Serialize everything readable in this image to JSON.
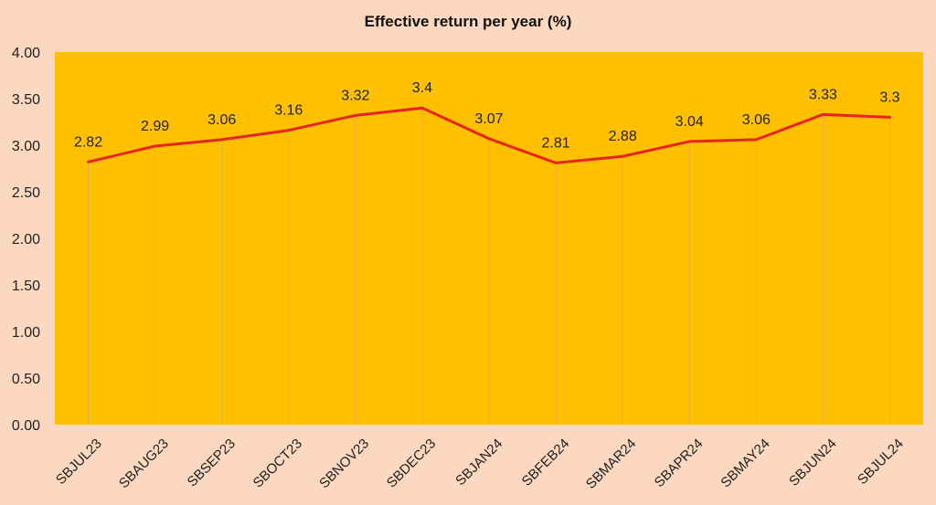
{
  "chart_data": {
    "type": "line",
    "title": "Effective return per year (%)",
    "xlabel": "",
    "ylabel": "",
    "categories": [
      "SBJUL23",
      "SBAUG23",
      "SBSEP23",
      "SBOCT23",
      "SBNOV23",
      "SBDEC23",
      "SBJAN24",
      "SBFEB24",
      "SBMAR24",
      "SBAPR24",
      "SBMAY24",
      "SBJUN24",
      "SBJUL24"
    ],
    "series": [
      {
        "values": [
          2.82,
          2.99,
          3.06,
          3.16,
          3.32,
          3.4,
          3.07,
          2.81,
          2.88,
          3.04,
          3.06,
          3.33,
          3.3
        ]
      }
    ],
    "data_labels": [
      "2.82",
      "2.99",
      "3.06",
      "3.16",
      "3.32",
      "3.4",
      "3.07",
      "2.81",
      "2.88",
      "3.04",
      "3.06",
      "3.33",
      "3.3"
    ],
    "ylim": [
      0,
      4
    ],
    "yticks": [
      "0.00",
      "0.50",
      "1.00",
      "1.50",
      "2.00",
      "2.50",
      "3.00",
      "3.50",
      "4.00"
    ],
    "grid": false,
    "legend": "none",
    "colors": {
      "background": "#fbd8bf",
      "plot_area": "#ffc000",
      "line": "#e8231a",
      "drop_lines": "#e6b04a"
    }
  }
}
